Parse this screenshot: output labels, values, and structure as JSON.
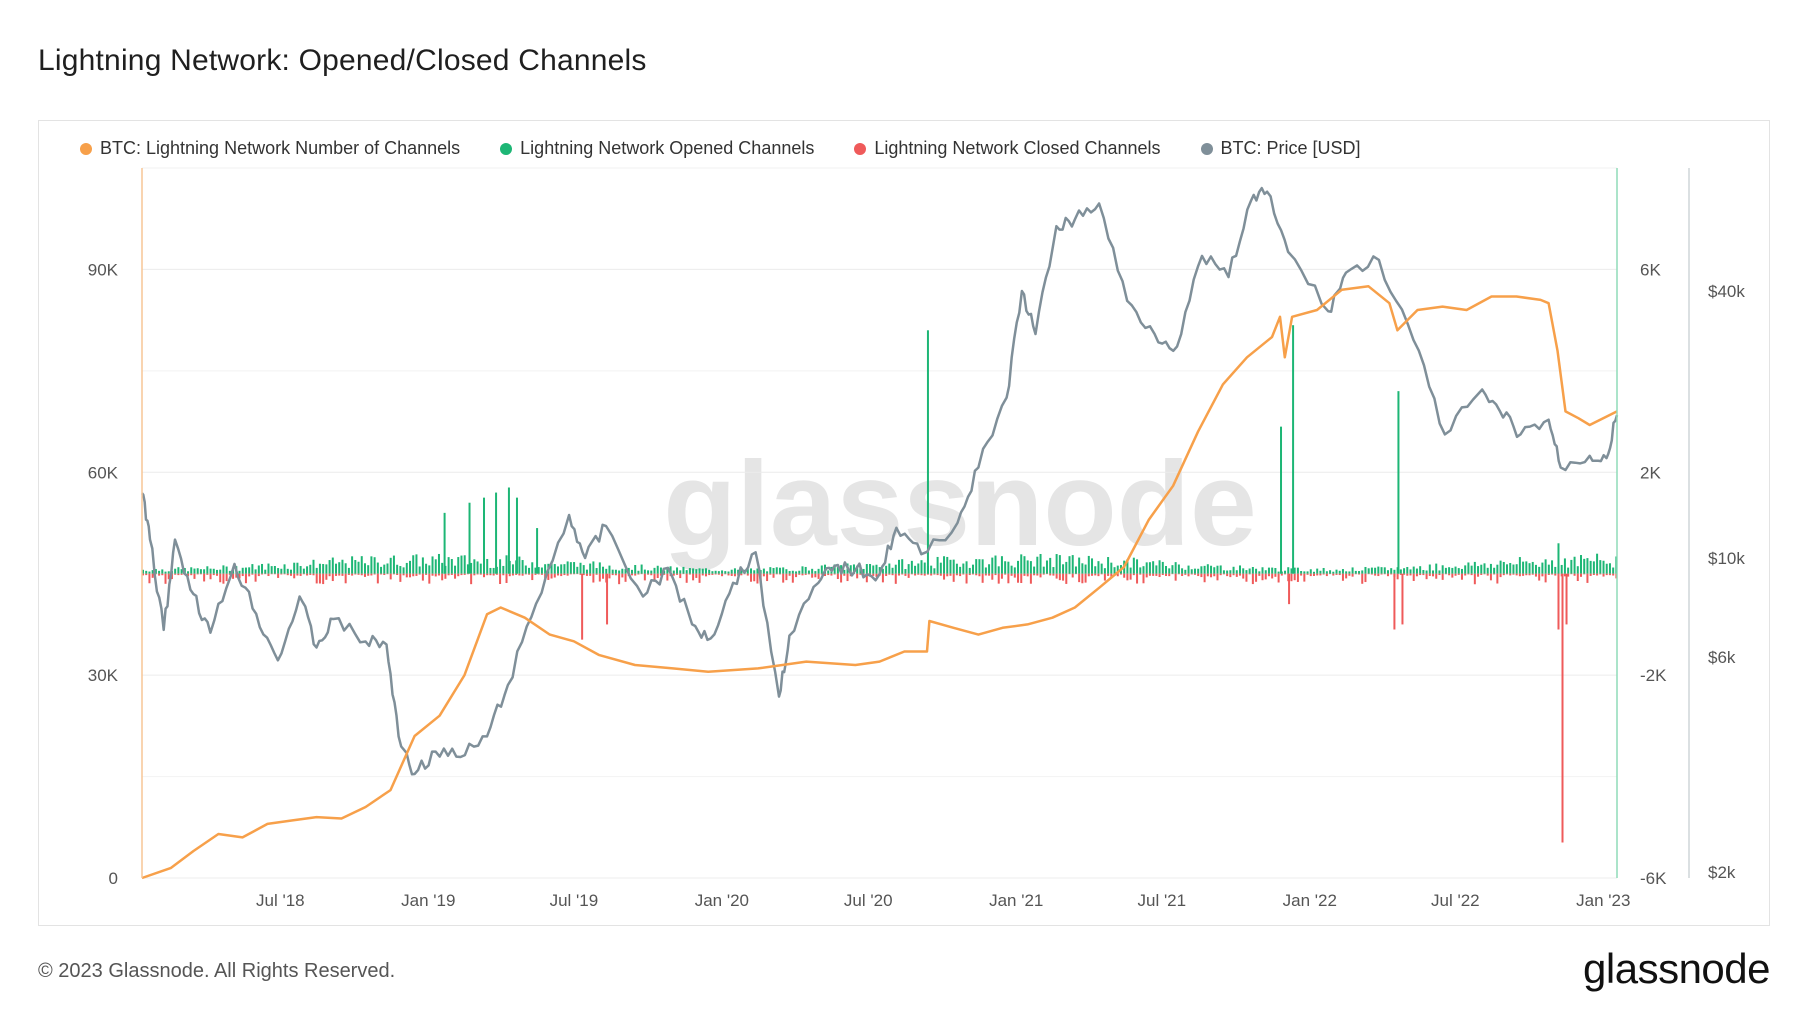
{
  "title": "Lightning Network: Opened/Closed Channels",
  "footer": "© 2023 Glassnode. All Rights Reserved.",
  "brand": "glassnode",
  "watermark": "glassnode",
  "legend": [
    {
      "label": "BTC: Lightning Network Number of Channels",
      "color": "#f7a04a"
    },
    {
      "label": "Lightning Network Opened Channels",
      "color": "#1db675"
    },
    {
      "label": "Lightning Network Closed Channels",
      "color": "#ef5a5a"
    },
    {
      "label": "BTC: Price [USD]",
      "color": "#7f8f99"
    }
  ],
  "chart_data": {
    "type": "line",
    "x_ticks": [
      "Jul '18",
      "Jan '19",
      "Jul '19",
      "Jan '20",
      "Jul '20",
      "Jan '21",
      "Jul '21",
      "Jan '22",
      "Jul '22",
      "Jan '23"
    ],
    "y_left_ticks": [
      "0",
      "30K",
      "60K",
      "90K"
    ],
    "y_left_range": [
      0,
      105000
    ],
    "y_mid_ticks": [
      "-6K",
      "-2K",
      "2K",
      "6K"
    ],
    "y_mid_range": [
      -6000,
      8000
    ],
    "y_right_ticks": [
      "$2k",
      "$6k",
      "$10k",
      "$40k"
    ],
    "y_right_scale": "log",
    "x_range": [
      "2018-01-10",
      "2023-01-18"
    ],
    "series": [
      {
        "name": "BTC: Lightning Network Number of Channels",
        "axis": "left",
        "points": [
          [
            "2018-01-10",
            0
          ],
          [
            "2018-02-15",
            1500
          ],
          [
            "2018-03-15",
            4000
          ],
          [
            "2018-04-15",
            6500
          ],
          [
            "2018-05-15",
            6000
          ],
          [
            "2018-06-15",
            8000
          ],
          [
            "2018-07-15",
            8500
          ],
          [
            "2018-08-15",
            9000
          ],
          [
            "2018-09-15",
            8800
          ],
          [
            "2018-10-15",
            10500
          ],
          [
            "2018-11-15",
            13000
          ],
          [
            "2018-12-15",
            21000
          ],
          [
            "2019-01-15",
            24000
          ],
          [
            "2019-02-15",
            30000
          ],
          [
            "2019-03-15",
            39000
          ],
          [
            "2019-04-01",
            40000
          ],
          [
            "2019-05-01",
            38500
          ],
          [
            "2019-06-01",
            36000
          ],
          [
            "2019-07-01",
            35000
          ],
          [
            "2019-08-01",
            33000
          ],
          [
            "2019-09-15",
            31500
          ],
          [
            "2019-11-01",
            31000
          ],
          [
            "2019-12-15",
            30500
          ],
          [
            "2020-02-15",
            31000
          ],
          [
            "2020-04-15",
            32000
          ],
          [
            "2020-06-15",
            31500
          ],
          [
            "2020-07-15",
            32000
          ],
          [
            "2020-08-15",
            33500
          ],
          [
            "2020-09-12",
            33500
          ],
          [
            "2020-09-15",
            38000
          ],
          [
            "2020-10-15",
            37000
          ],
          [
            "2020-11-15",
            36000
          ],
          [
            "2020-12-15",
            37000
          ],
          [
            "2021-01-15",
            37500
          ],
          [
            "2021-02-15",
            38500
          ],
          [
            "2021-03-15",
            40000
          ],
          [
            "2021-04-15",
            43000
          ],
          [
            "2021-05-15",
            46000
          ],
          [
            "2021-06-15",
            53000
          ],
          [
            "2021-07-15",
            58000
          ],
          [
            "2021-08-15",
            66000
          ],
          [
            "2021-09-15",
            73000
          ],
          [
            "2021-10-15",
            77000
          ],
          [
            "2021-11-15",
            80000
          ],
          [
            "2021-11-25",
            83000
          ],
          [
            "2021-12-01",
            77000
          ],
          [
            "2021-12-10",
            83000
          ],
          [
            "2022-01-10",
            84000
          ],
          [
            "2022-02-10",
            87000
          ],
          [
            "2022-03-15",
            87500
          ],
          [
            "2022-04-10",
            85000
          ],
          [
            "2022-04-20",
            81000
          ],
          [
            "2022-05-15",
            84000
          ],
          [
            "2022-06-15",
            84500
          ],
          [
            "2022-07-15",
            84000
          ],
          [
            "2022-08-15",
            86000
          ],
          [
            "2022-09-15",
            86000
          ],
          [
            "2022-10-15",
            85500
          ],
          [
            "2022-10-25",
            85000
          ],
          [
            "2022-11-05",
            78000
          ],
          [
            "2022-11-15",
            69000
          ],
          [
            "2022-12-01",
            68000
          ],
          [
            "2022-12-15",
            67000
          ],
          [
            "2023-01-18",
            69000
          ]
        ]
      },
      {
        "name": "BTC: Price [USD]",
        "axis": "right",
        "points": [
          [
            "2018-01-10",
            14000
          ],
          [
            "2018-01-20",
            11000
          ],
          [
            "2018-02-06",
            6900
          ],
          [
            "2018-02-20",
            11000
          ],
          [
            "2018-03-15",
            8300
          ],
          [
            "2018-04-05",
            6800
          ],
          [
            "2018-05-05",
            9700
          ],
          [
            "2018-06-01",
            7500
          ],
          [
            "2018-06-28",
            5900
          ],
          [
            "2018-07-25",
            8200
          ],
          [
            "2018-08-15",
            6300
          ],
          [
            "2018-09-05",
            7300
          ],
          [
            "2018-10-15",
            6500
          ],
          [
            "2018-11-10",
            6400
          ],
          [
            "2018-11-25",
            4000
          ],
          [
            "2018-12-15",
            3300
          ],
          [
            "2019-01-10",
            3700
          ],
          [
            "2019-02-10",
            3600
          ],
          [
            "2019-03-15",
            4000
          ],
          [
            "2019-04-10",
            5200
          ],
          [
            "2019-05-15",
            7900
          ],
          [
            "2019-06-25",
            12500
          ],
          [
            "2019-07-15",
            10000
          ],
          [
            "2019-08-10",
            11800
          ],
          [
            "2019-09-25",
            8200
          ],
          [
            "2019-10-26",
            9500
          ],
          [
            "2019-11-25",
            7100
          ],
          [
            "2019-12-18",
            6600
          ],
          [
            "2020-01-15",
            8800
          ],
          [
            "2020-02-12",
            10300
          ],
          [
            "2020-03-12",
            4900
          ],
          [
            "2020-03-25",
            6700
          ],
          [
            "2020-04-30",
            8800
          ],
          [
            "2020-05-20",
            9600
          ],
          [
            "2020-06-15",
            9400
          ],
          [
            "2020-07-15",
            9200
          ],
          [
            "2020-08-05",
            11700
          ],
          [
            "2020-09-05",
            10200
          ],
          [
            "2020-10-20",
            12000
          ],
          [
            "2020-11-15",
            16000
          ],
          [
            "2020-12-20",
            23000
          ],
          [
            "2021-01-08",
            40000
          ],
          [
            "2021-01-25",
            32000
          ],
          [
            "2021-02-20",
            56000
          ],
          [
            "2021-03-15",
            58000
          ],
          [
            "2021-04-14",
            63000
          ],
          [
            "2021-05-19",
            38000
          ],
          [
            "2021-06-22",
            32000
          ],
          [
            "2021-07-20",
            30000
          ],
          [
            "2021-08-20",
            48000
          ],
          [
            "2021-09-22",
            43000
          ],
          [
            "2021-10-20",
            64000
          ],
          [
            "2021-11-09",
            67000
          ],
          [
            "2021-12-05",
            49000
          ],
          [
            "2022-01-24",
            36000
          ],
          [
            "2022-02-15",
            44000
          ],
          [
            "2022-03-28",
            47000
          ],
          [
            "2022-05-10",
            31000
          ],
          [
            "2022-06-18",
            19000
          ],
          [
            "2022-07-30",
            23500
          ],
          [
            "2022-08-25",
            21500
          ],
          [
            "2022-09-20",
            19000
          ],
          [
            "2022-10-25",
            20500
          ],
          [
            "2022-11-09",
            16000
          ],
          [
            "2022-12-15",
            17000
          ],
          [
            "2023-01-05",
            16800
          ],
          [
            "2023-01-18",
            21000
          ]
        ]
      },
      {
        "name": "Lightning Network Opened Channels",
        "axis": "mid",
        "spikes": [
          [
            "2019-01-20",
            1200
          ],
          [
            "2019-02-20",
            1400
          ],
          [
            "2019-03-10",
            1500
          ],
          [
            "2019-03-25",
            1600
          ],
          [
            "2019-04-10",
            1700
          ],
          [
            "2019-04-20",
            1500
          ],
          [
            "2019-05-15",
            900
          ],
          [
            "2020-09-12",
            4800
          ],
          [
            "2021-11-25",
            2900
          ],
          [
            "2021-12-10",
            4900
          ],
          [
            "2022-04-20",
            3600
          ],
          [
            "2022-11-05",
            600
          ]
        ],
        "baseline_max": 400
      },
      {
        "name": "Lightning Network Closed Channels",
        "axis": "mid",
        "spikes": [
          [
            "2019-07-10",
            -1300
          ],
          [
            "2019-08-10",
            -1000
          ],
          [
            "2021-12-05",
            -600
          ],
          [
            "2022-04-15",
            -1100
          ],
          [
            "2022-04-25",
            -1000
          ],
          [
            "2022-11-05",
            -1100
          ],
          [
            "2022-11-10",
            -5300
          ],
          [
            "2022-11-15",
            -1000
          ]
        ],
        "baseline_max": -300
      }
    ]
  }
}
